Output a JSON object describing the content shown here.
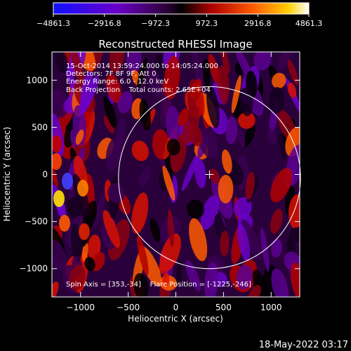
{
  "colorbar": {
    "tick_labels": [
      "−4861.3",
      "−2916.8",
      "−972.3",
      "972.3",
      "2916.8",
      "4861.3"
    ]
  },
  "chart_data": {
    "type": "heatmap",
    "title": "Reconstructed RHESSI Image",
    "xlabel": "Heliocentric X (arcsec)",
    "ylabel": "Heliocentric Y (arcsec)",
    "xlim": [
      -1300,
      1300
    ],
    "ylim": [
      -1300,
      1300
    ],
    "xticks": [
      {
        "value": -1000,
        "label": "−1000"
      },
      {
        "value": -500,
        "label": "−500"
      },
      {
        "value": 0,
        "label": "0"
      },
      {
        "value": 500,
        "label": "500"
      },
      {
        "value": 1000,
        "label": "1000"
      }
    ],
    "yticks": [
      {
        "value": 1000,
        "label": "1000"
      },
      {
        "value": 500,
        "label": "500"
      },
      {
        "value": 0,
        "label": "0"
      },
      {
        "value": -500,
        "label": "−500"
      },
      {
        "value": -1000,
        "label": "−1000"
      }
    ],
    "colorbar_range": [
      -4861.3,
      4861.3
    ],
    "solar_disk": {
      "center_x": 353,
      "center_y": -34,
      "radius": 955
    },
    "sun_center_marker": {
      "x": 353,
      "y": 0
    },
    "annotations": [
      "15-Oct-2014 13:59:24.000 to 14:05:24.000",
      "Detectors: 7F 8F 9F, Att 0",
      "Energy Range: 6.0 - 12.0 keV",
      "Back Projection    Total counts: 2.65E+04"
    ],
    "footer_annotation": "Spin Axis = [353,-34]    Flare Position = [-1225,-246]"
  },
  "timestamp": "18-May-2022 03:17"
}
